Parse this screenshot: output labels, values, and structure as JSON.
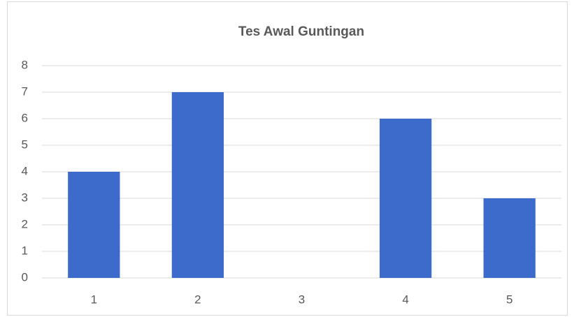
{
  "chart_data": {
    "type": "bar",
    "title": "Tes Awal Guntingan",
    "categories": [
      "1",
      "2",
      "3",
      "4",
      "5"
    ],
    "values": [
      4,
      7,
      0,
      6,
      3
    ],
    "color": "#3d6bcb",
    "ylim": [
      0,
      8
    ],
    "yticks": [
      0,
      1,
      2,
      3,
      4,
      5,
      6,
      7,
      8
    ],
    "grid": true
  }
}
